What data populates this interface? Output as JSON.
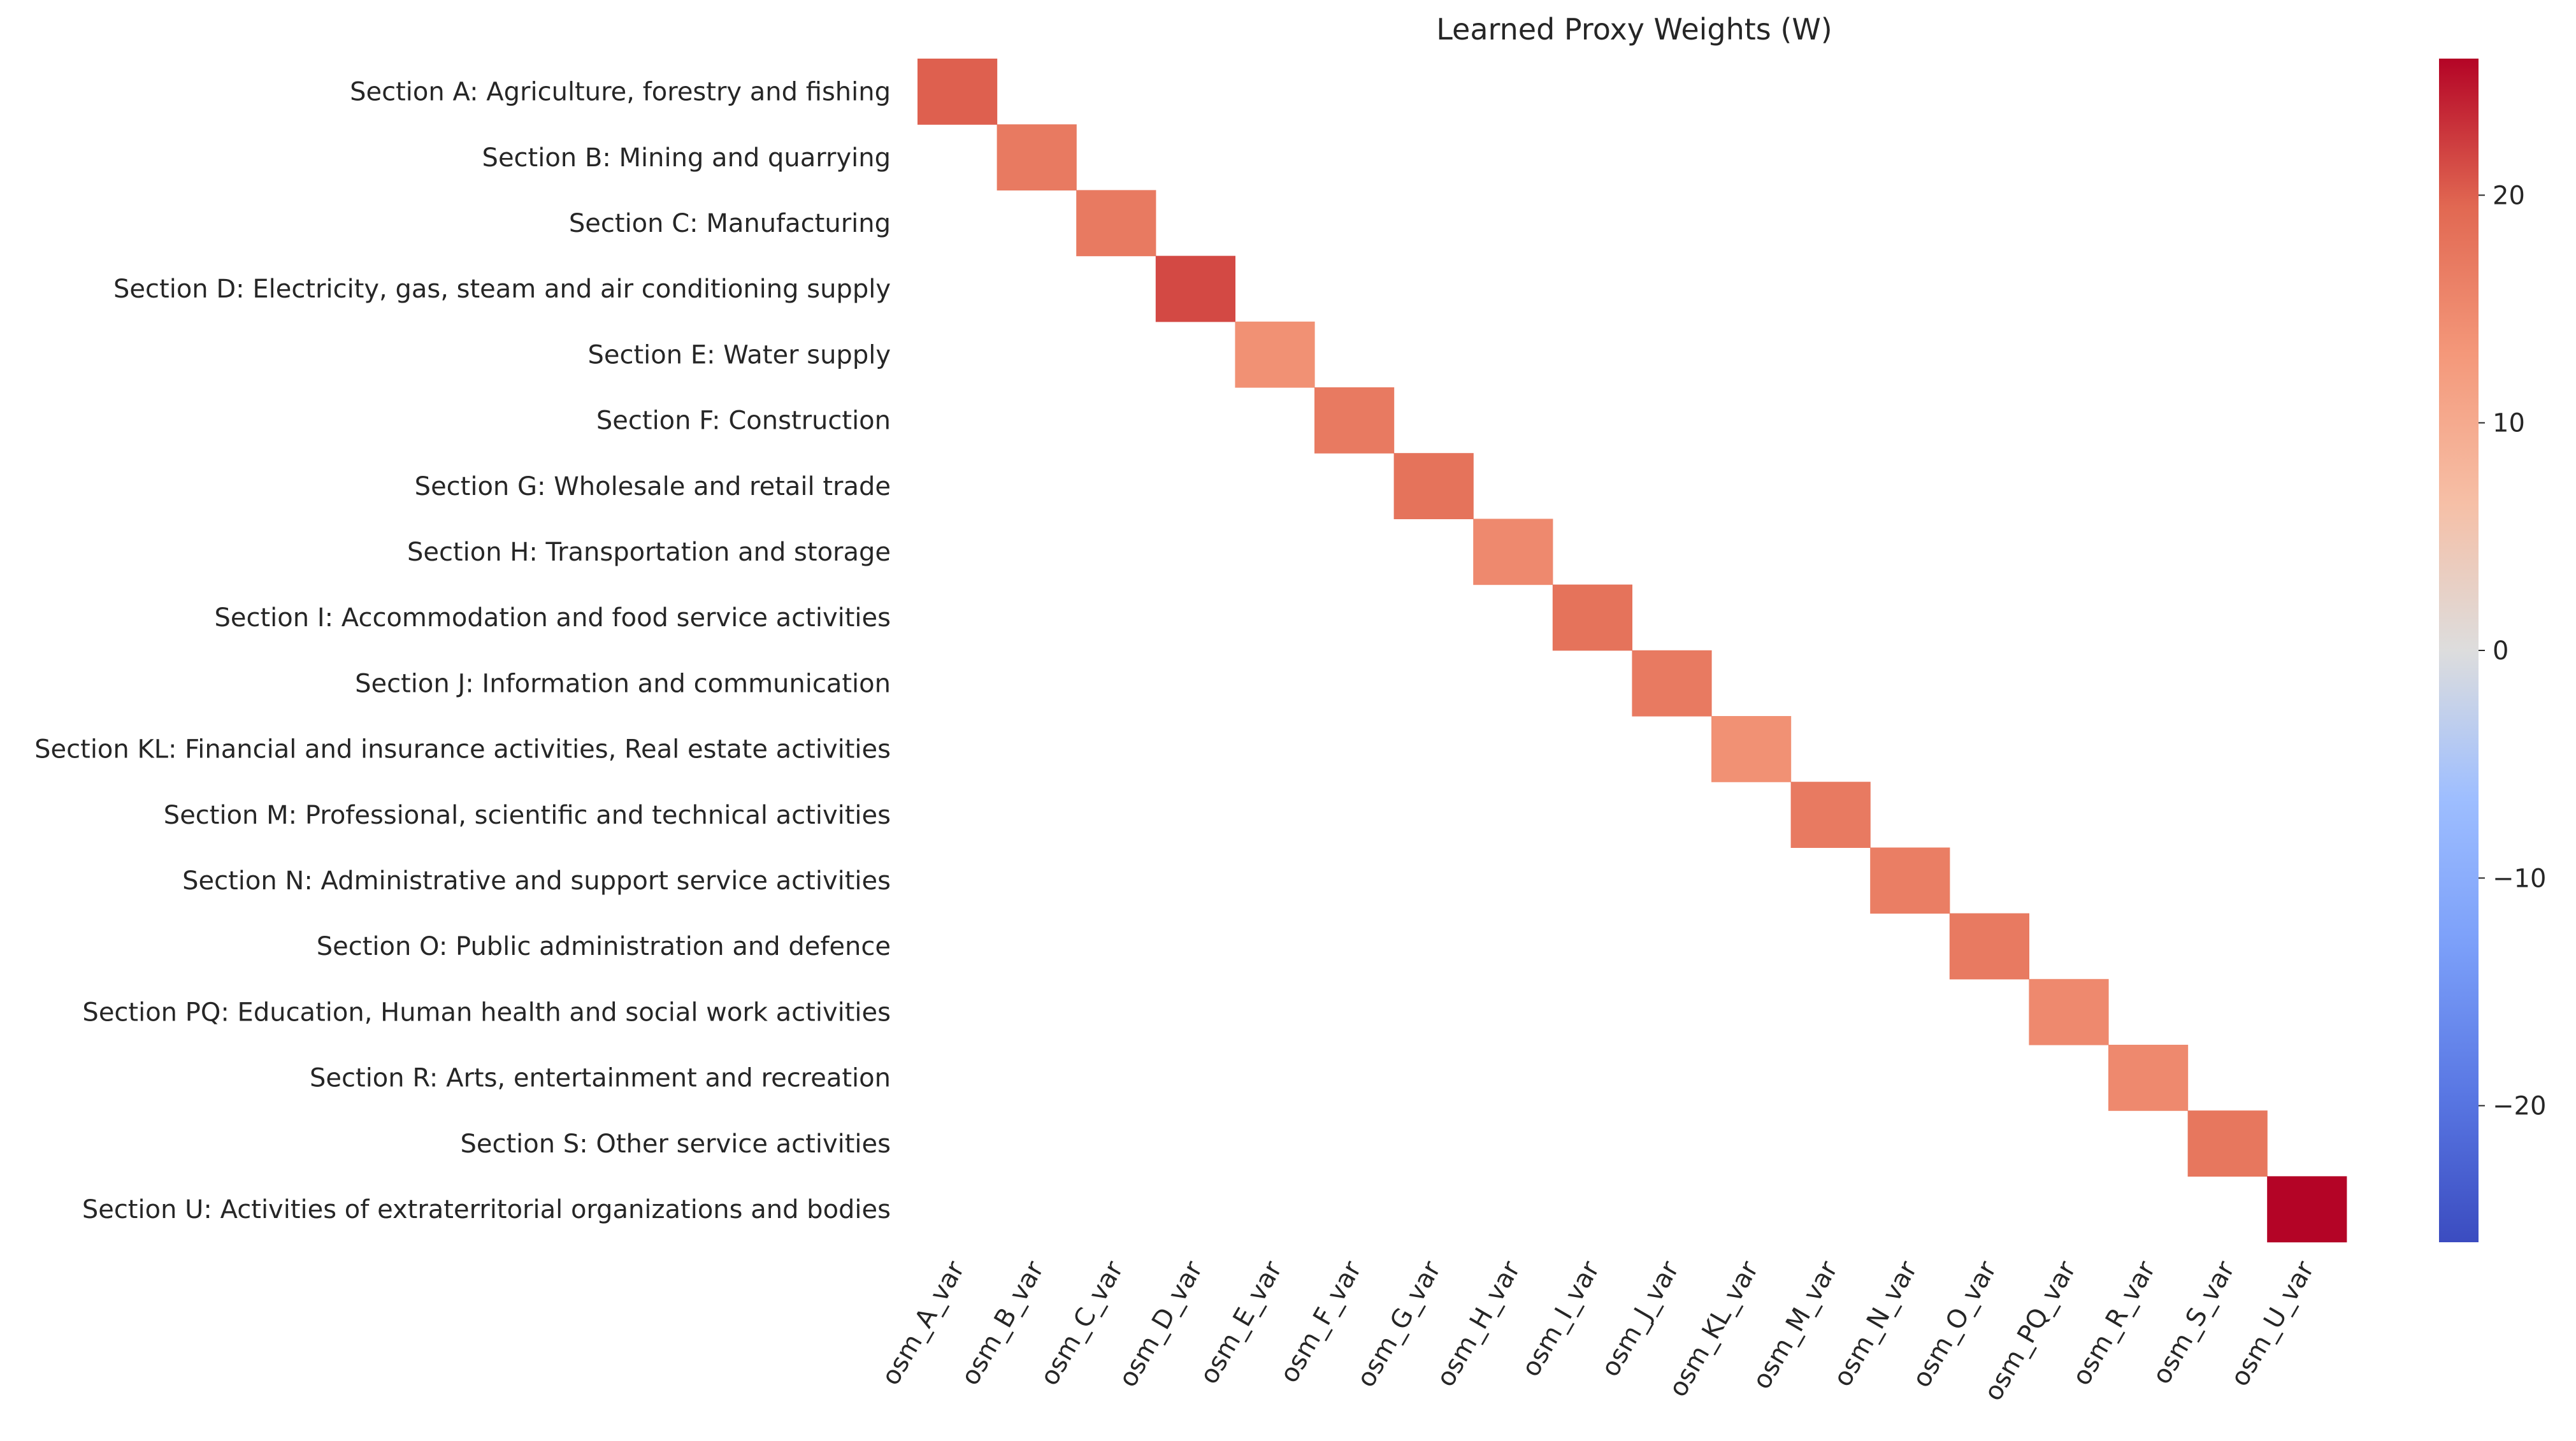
{
  "chart_data": {
    "type": "heatmap",
    "title": "Learned Proxy Weights (W)",
    "rows": [
      "Section A: Agriculture, forestry and fishing",
      "Section B: Mining and quarrying",
      "Section C: Manufacturing",
      "Section D: Electricity, gas, steam and air conditioning supply",
      "Section E: Water supply",
      "Section F: Construction",
      "Section G: Wholesale and retail trade",
      "Section H: Transportation and storage",
      "Section I: Accommodation and food service activities",
      "Section J: Information and communication",
      "Section KL: Financial and insurance activities, Real estate activities",
      "Section M: Professional, scientific and technical activities",
      "Section N: Administrative and support service activities",
      "Section O: Public administration and defence",
      "Section PQ: Education, Human health and social work activities",
      "Section R: Arts, entertainment and recreation",
      "Section S: Other service activities",
      "Section U: Activities of extraterritorial organizations and bodies"
    ],
    "columns": [
      "osm_A_var",
      "osm_B_var",
      "osm_C_var",
      "osm_D_var",
      "osm_E_var",
      "osm_F_var",
      "osm_G_var",
      "osm_H_var",
      "osm_I_var",
      "osm_J_var",
      "osm_KL_var",
      "osm_M_var",
      "osm_N_var",
      "osm_O_var",
      "osm_PQ_var",
      "osm_R_var",
      "osm_S_var",
      "osm_U_var"
    ],
    "diagonal_values": [
      20,
      17,
      17,
      21.5,
      14,
      17,
      18,
      15,
      18,
      17,
      14,
      17,
      16.5,
      17,
      15,
      15,
      17.5,
      26
    ],
    "off_diagonal": "blank",
    "colormap": "coolwarm",
    "vmin": -26,
    "vmax": 26,
    "colorbar_ticks": [
      20,
      10,
      0,
      -10,
      -20
    ],
    "colorbar_tick_labels": [
      "20",
      "10",
      "0",
      "−10",
      "−20"
    ]
  }
}
